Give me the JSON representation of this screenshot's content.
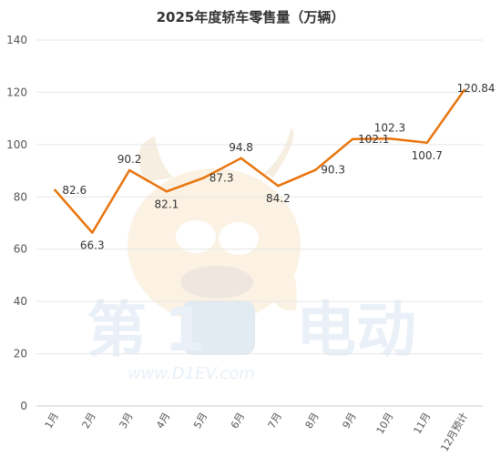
{
  "chart_data": {
    "type": "line",
    "title": "2025年度轿车零售量（万辆）",
    "xlabel": "",
    "ylabel": "",
    "categories": [
      "1月",
      "2月",
      "3月",
      "4月",
      "5月",
      "6月",
      "7月",
      "8月",
      "9月",
      "10月",
      "11月",
      "12月预计"
    ],
    "series": [
      {
        "values": [
          82.6,
          66.3,
          90.2,
          82.1,
          87.3,
          94.8,
          84.2,
          90.3,
          102.1,
          102.3,
          100.7,
          120.84
        ]
      }
    ],
    "data_labels": [
      "82.6",
      "66.3",
      "90.2",
      "82.1",
      "87.3",
      "94.8",
      "84.2",
      "90.3",
      "102.1",
      "102.3",
      "100.7",
      "120.84"
    ],
    "ylim": [
      0,
      140
    ],
    "yticks": [
      0,
      20,
      40,
      60,
      80,
      100,
      120,
      140
    ],
    "grid": true,
    "line_color": "#E8740C",
    "grid_color": "#E6E6E6",
    "label_color": "#333333"
  },
  "watermark": {
    "text_left": "第",
    "text_number": "1",
    "text_right": "电动",
    "url": "www.D1EV.com"
  }
}
